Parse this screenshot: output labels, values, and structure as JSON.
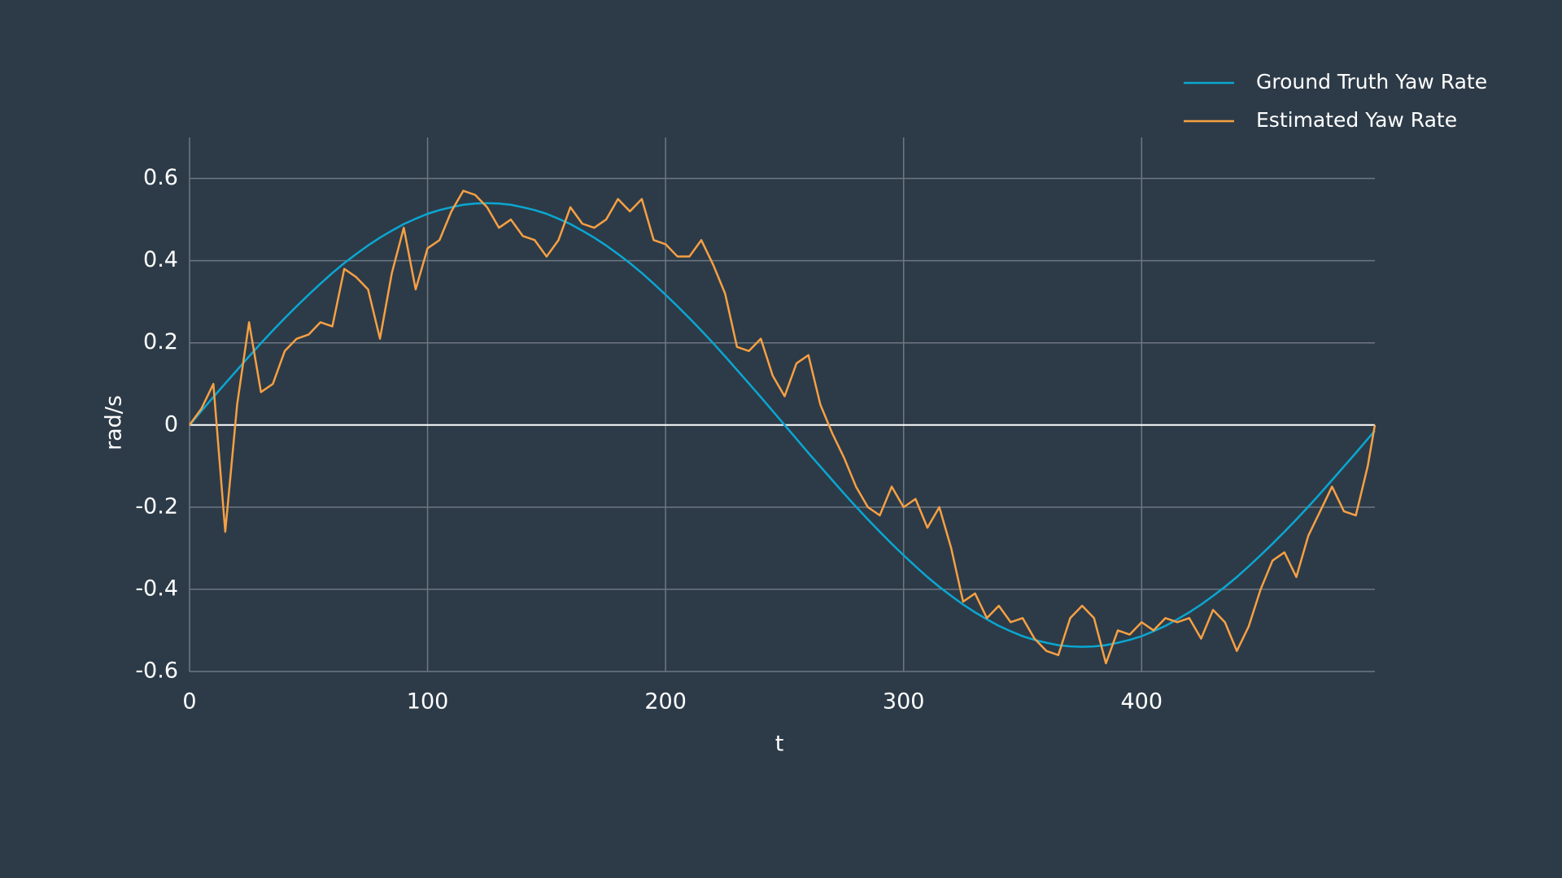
{
  "chart_data": {
    "type": "line",
    "xlabel": "t",
    "ylabel": "rad/s",
    "x": [
      0,
      5,
      10,
      15,
      20,
      25,
      30,
      35,
      40,
      45,
      50,
      55,
      60,
      65,
      70,
      75,
      80,
      85,
      90,
      95,
      100,
      105,
      110,
      115,
      120,
      125,
      130,
      135,
      140,
      145,
      150,
      155,
      160,
      165,
      170,
      175,
      180,
      185,
      190,
      195,
      200,
      205,
      210,
      215,
      220,
      225,
      230,
      235,
      240,
      245,
      250,
      255,
      260,
      265,
      270,
      275,
      280,
      285,
      290,
      295,
      300,
      305,
      310,
      315,
      320,
      325,
      330,
      335,
      340,
      345,
      350,
      355,
      360,
      365,
      370,
      375,
      380,
      385,
      390,
      395,
      400,
      405,
      410,
      415,
      420,
      425,
      430,
      435,
      440,
      445,
      450,
      455,
      460,
      465,
      470,
      475,
      480,
      485,
      490,
      495,
      498
    ],
    "series": [
      {
        "name": "Ground Truth Yaw Rate",
        "color": "#0aa7d2",
        "values": [
          0,
          0.034,
          0.068,
          0.101,
          0.134,
          0.167,
          0.199,
          0.23,
          0.26,
          0.289,
          0.317,
          0.344,
          0.37,
          0.394,
          0.416,
          0.437,
          0.456,
          0.473,
          0.489,
          0.502,
          0.514,
          0.523,
          0.53,
          0.536,
          0.539,
          0.54,
          0.539,
          0.536,
          0.53,
          0.523,
          0.514,
          0.502,
          0.489,
          0.473,
          0.456,
          0.437,
          0.416,
          0.394,
          0.37,
          0.344,
          0.317,
          0.289,
          0.26,
          0.23,
          0.199,
          0.167,
          0.134,
          0.101,
          0.068,
          0.034,
          0,
          -0.034,
          -0.068,
          -0.101,
          -0.134,
          -0.167,
          -0.199,
          -0.23,
          -0.26,
          -0.289,
          -0.317,
          -0.344,
          -0.37,
          -0.394,
          -0.416,
          -0.437,
          -0.456,
          -0.473,
          -0.489,
          -0.502,
          -0.514,
          -0.523,
          -0.53,
          -0.536,
          -0.539,
          -0.54,
          -0.539,
          -0.536,
          -0.53,
          -0.523,
          -0.514,
          -0.502,
          -0.489,
          -0.473,
          -0.456,
          -0.437,
          -0.416,
          -0.394,
          -0.37,
          -0.344,
          -0.317,
          -0.289,
          -0.26,
          -0.23,
          -0.199,
          -0.167,
          -0.134,
          -0.101,
          -0.068,
          -0.034,
          -0.014
        ]
      },
      {
        "name": "Estimated Yaw Rate",
        "color": "#f7a043",
        "values": [
          0,
          0.04,
          0.1,
          -0.26,
          0.05,
          0.25,
          0.08,
          0.1,
          0.18,
          0.21,
          0.22,
          0.25,
          0.24,
          0.38,
          0.36,
          0.33,
          0.21,
          0.37,
          0.48,
          0.33,
          0.43,
          0.45,
          0.52,
          0.57,
          0.56,
          0.53,
          0.48,
          0.5,
          0.46,
          0.45,
          0.41,
          0.45,
          0.53,
          0.49,
          0.48,
          0.5,
          0.55,
          0.52,
          0.55,
          0.45,
          0.44,
          0.41,
          0.41,
          0.45,
          0.39,
          0.32,
          0.19,
          0.18,
          0.21,
          0.12,
          0.07,
          0.15,
          0.17,
          0.05,
          -0.02,
          -0.08,
          -0.15,
          -0.2,
          -0.22,
          -0.15,
          -0.2,
          -0.18,
          -0.25,
          -0.2,
          -0.3,
          -0.43,
          -0.41,
          -0.47,
          -0.44,
          -0.48,
          -0.47,
          -0.52,
          -0.55,
          -0.56,
          -0.47,
          -0.44,
          -0.47,
          -0.58,
          -0.5,
          -0.51,
          -0.48,
          -0.5,
          -0.47,
          -0.48,
          -0.47,
          -0.52,
          -0.45,
          -0.48,
          -0.55,
          -0.49,
          -0.4,
          -0.33,
          -0.31,
          -0.37,
          -0.27,
          -0.21,
          -0.15,
          -0.21,
          -0.22,
          -0.1,
          0
        ]
      }
    ],
    "xlim": [
      0,
      498
    ],
    "ylim": [
      -0.6,
      0.7
    ],
    "xticks": [
      0,
      100,
      200,
      300,
      400
    ],
    "yticks": [
      -0.6,
      -0.4,
      -0.2,
      0,
      0.2,
      0.4,
      0.6
    ],
    "grid": true,
    "legend": "top-right"
  }
}
